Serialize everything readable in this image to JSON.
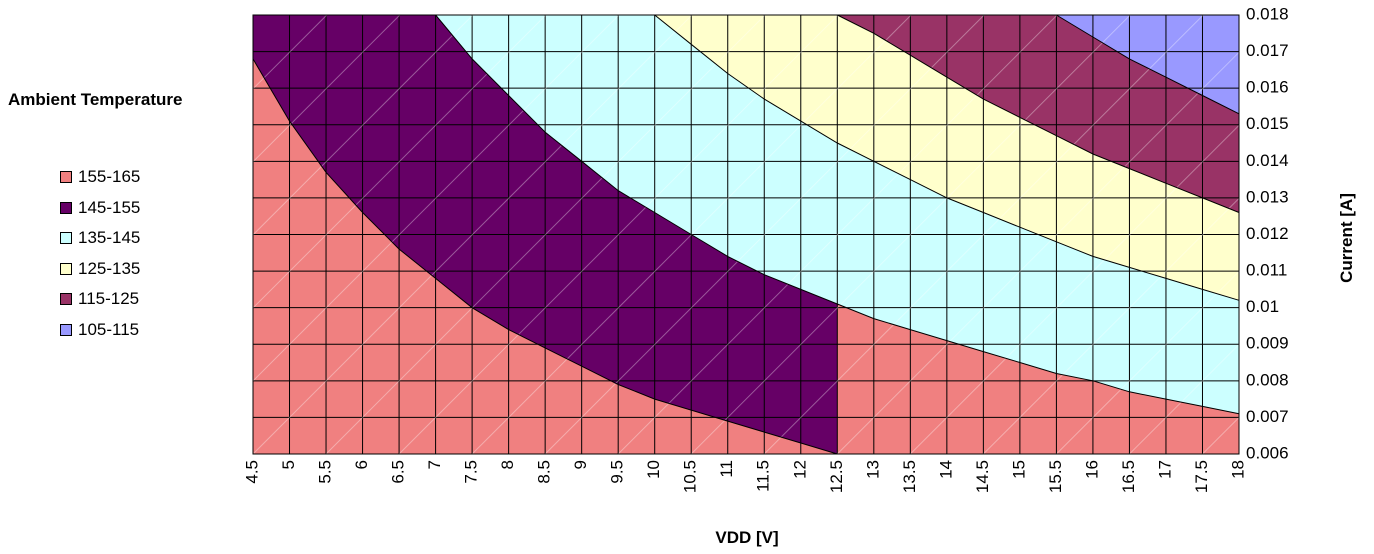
{
  "chart_data": {
    "type": "area",
    "title": "",
    "xlabel": "VDD [V]",
    "ylabel": "Current  [A]",
    "legend_title": "Ambient Temperature",
    "legend_position": "left",
    "grid": true,
    "xlim": [
      4.5,
      18
    ],
    "ylim": [
      0.006,
      0.018
    ],
    "x_ticks": [
      "4.5",
      "5",
      "5.5",
      "6",
      "6.5",
      "7",
      "7.5",
      "8",
      "8.5",
      "9",
      "9.5",
      "10",
      "10.5",
      "11",
      "11.5",
      "12",
      "12.5",
      "13",
      "13.5",
      "14",
      "14.5",
      "15",
      "15.5",
      "16",
      "16.5",
      "17",
      "17.5",
      "18"
    ],
    "y_ticks": [
      "0.006",
      "0.007",
      "0.008",
      "0.009",
      "0.01",
      "0.011",
      "0.012",
      "0.013",
      "0.014",
      "0.015",
      "0.016",
      "0.017",
      "0.018"
    ],
    "y_axis_side": "right",
    "series": [
      {
        "name": "155-165",
        "color": "#F08080"
      },
      {
        "name": "145-155",
        "color": "#660066"
      },
      {
        "name": "135-145",
        "color": "#CCFFFF"
      },
      {
        "name": "125-135",
        "color": "#FFFFCC"
      },
      {
        "name": "115-125",
        "color": "#993366"
      },
      {
        "name": "105-115",
        "color": "#9999FF"
      }
    ],
    "boundaries": [
      {
        "between": [
          "155-165",
          "145-155"
        ],
        "points": [
          [
            4.5,
            0.0168
          ],
          [
            5,
            0.0151
          ],
          [
            5.5,
            0.0137
          ],
          [
            6,
            0.0126
          ],
          [
            6.5,
            0.0116
          ],
          [
            7,
            0.0108
          ],
          [
            7.5,
            0.01
          ],
          [
            8,
            0.0094
          ],
          [
            8.5,
            0.0089
          ],
          [
            9,
            0.0084
          ],
          [
            9.5,
            0.0079
          ],
          [
            10,
            0.0075
          ],
          [
            10.5,
            0.0072
          ],
          [
            11,
            0.0069
          ],
          [
            11.5,
            0.0066
          ],
          [
            12,
            0.0063
          ],
          [
            12.5,
            0.006
          ]
        ]
      },
      {
        "between": [
          "145-155",
          "135-145"
        ],
        "points": [
          [
            7,
            0.018
          ],
          [
            7.5,
            0.0168
          ],
          [
            8,
            0.0158
          ],
          [
            8.5,
            0.0148
          ],
          [
            9,
            0.014
          ],
          [
            9.5,
            0.0132
          ],
          [
            10,
            0.0126
          ],
          [
            10.5,
            0.012
          ],
          [
            11,
            0.0114
          ],
          [
            11.5,
            0.0109
          ],
          [
            12,
            0.0105
          ],
          [
            12.5,
            0.0101
          ],
          [
            13,
            0.0097
          ],
          [
            13.5,
            0.0094
          ],
          [
            14,
            0.0091
          ],
          [
            14.5,
            0.0088
          ],
          [
            15,
            0.0085
          ],
          [
            15.5,
            0.0082
          ],
          [
            16,
            0.008
          ],
          [
            16.5,
            0.0077
          ],
          [
            17,
            0.0075
          ],
          [
            17.5,
            0.0073
          ],
          [
            18,
            0.0071
          ]
        ]
      },
      {
        "between": [
          "135-145",
          "125-135"
        ],
        "points": [
          [
            10,
            0.018
          ],
          [
            10.5,
            0.0172
          ],
          [
            11,
            0.0164
          ],
          [
            11.5,
            0.0157
          ],
          [
            12,
            0.0151
          ],
          [
            12.5,
            0.0145
          ],
          [
            13,
            0.014
          ],
          [
            13.5,
            0.0135
          ],
          [
            14,
            0.013
          ],
          [
            14.5,
            0.0126
          ],
          [
            15,
            0.0122
          ],
          [
            15.5,
            0.0118
          ],
          [
            16,
            0.0114
          ],
          [
            16.5,
            0.0111
          ],
          [
            17,
            0.0108
          ],
          [
            17.5,
            0.0105
          ],
          [
            18,
            0.0102
          ]
        ]
      },
      {
        "between": [
          "125-135",
          "115-125"
        ],
        "points": [
          [
            12.5,
            0.018
          ],
          [
            13,
            0.0175
          ],
          [
            13.5,
            0.0169
          ],
          [
            14,
            0.0163
          ],
          [
            14.5,
            0.0157
          ],
          [
            15,
            0.0152
          ],
          [
            15.5,
            0.0147
          ],
          [
            16,
            0.0142
          ],
          [
            16.5,
            0.0138
          ],
          [
            17,
            0.0134
          ],
          [
            17.5,
            0.013
          ],
          [
            18,
            0.0126
          ]
        ]
      },
      {
        "between": [
          "115-125",
          "105-115"
        ],
        "points": [
          [
            15.5,
            0.018
          ],
          [
            16,
            0.0174
          ],
          [
            16.5,
            0.0168
          ],
          [
            17,
            0.0163
          ],
          [
            17.5,
            0.0158
          ],
          [
            18,
            0.0153
          ]
        ]
      }
    ]
  }
}
